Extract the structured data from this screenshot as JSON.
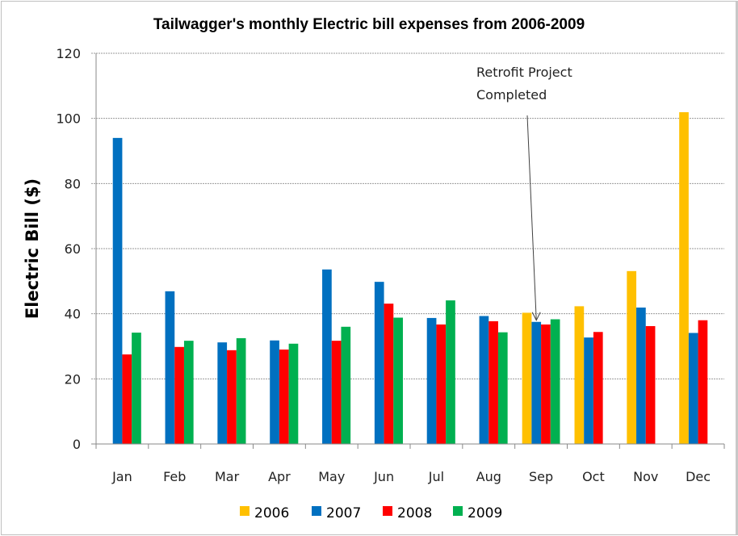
{
  "chart_data": {
    "type": "bar",
    "title": "Tailwagger's monthly Electric bill expenses from 2006-2009",
    "xlabel": "",
    "ylabel": "Electric Bill ($)",
    "ylim": [
      0,
      120
    ],
    "yticks": [
      0,
      20,
      40,
      60,
      80,
      100,
      120
    ],
    "ytick_labels": [
      "0",
      "20",
      "40",
      "60",
      "80",
      "100",
      "120"
    ],
    "grid": true,
    "legend_position": "bottom",
    "categories": [
      "Jan",
      "Feb",
      "Mar",
      "Apr",
      "May",
      "Jun",
      "Jul",
      "Aug",
      "Sep",
      "Oct",
      "Nov",
      "Dec"
    ],
    "series": [
      {
        "name": "2006",
        "color": "#FFC000",
        "values": [
          null,
          null,
          null,
          null,
          null,
          null,
          null,
          null,
          40.3,
          42.3,
          53.1,
          101.9
        ]
      },
      {
        "name": "2007",
        "color": "#0070C0",
        "values": [
          94.0,
          46.9,
          31.2,
          31.8,
          53.6,
          49.8,
          38.7,
          39.3,
          37.5,
          32.7,
          41.9,
          34.1
        ]
      },
      {
        "name": "2008",
        "color": "#FF0000",
        "values": [
          27.5,
          29.8,
          28.8,
          29.0,
          31.7,
          43.1,
          36.7,
          37.7,
          36.7,
          34.4,
          36.2,
          38.0
        ]
      },
      {
        "name": "2009",
        "color": "#00B050",
        "values": [
          34.2,
          31.7,
          32.5,
          30.8,
          36.0,
          38.8,
          44.1,
          34.3,
          38.3,
          null,
          null,
          null
        ]
      }
    ],
    "annotations": [
      {
        "text_lines": [
          "Retrofit Project",
          "Completed"
        ],
        "points_to_category": "Sep",
        "points_to_series": "2007",
        "arrow": true
      }
    ]
  }
}
